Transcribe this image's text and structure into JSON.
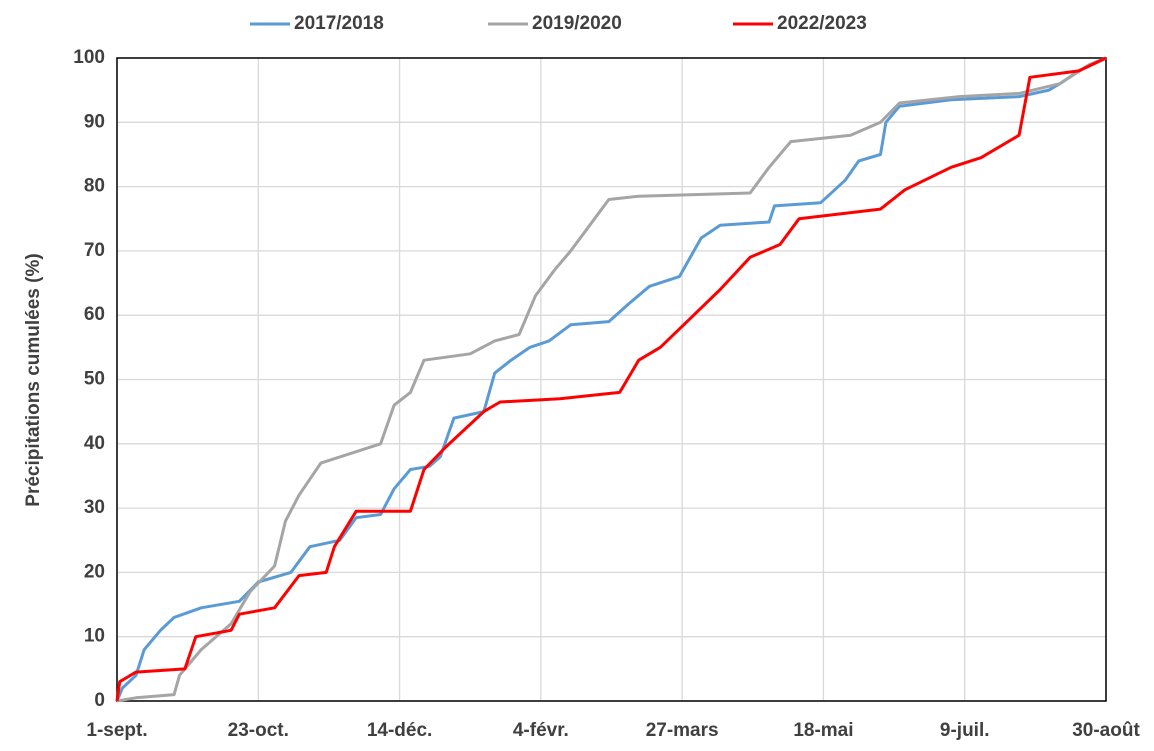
{
  "chart_data": {
    "type": "line",
    "y_label": "Précipitations cumulées (%)",
    "xlim": [
      0,
      364
    ],
    "xticks": [
      {
        "value": 0,
        "label": "1-sept."
      },
      {
        "value": 52,
        "label": "23-oct."
      },
      {
        "value": 104,
        "label": "14-déc."
      },
      {
        "value": 156,
        "label": "4-févr."
      },
      {
        "value": 208,
        "label": "27-mars"
      },
      {
        "value": 260,
        "label": "18-mai"
      },
      {
        "value": 312,
        "label": "9-juil."
      },
      {
        "value": 364,
        "label": "30-août"
      }
    ],
    "ylim": [
      0,
      100
    ],
    "yticks": [
      0,
      10,
      20,
      30,
      40,
      50,
      60,
      70,
      80,
      90,
      100
    ],
    "grid": true,
    "legend": "top",
    "series": [
      {
        "name": "2017/2018",
        "color": "#5b9bd5",
        "x": [
          0,
          2,
          7,
          10,
          16,
          21,
          31,
          45,
          52,
          64,
          71,
          82,
          88,
          97,
          102,
          108,
          115,
          119,
          124,
          135,
          139,
          145,
          152,
          159,
          167,
          181,
          189,
          196,
          207,
          215,
          222,
          240,
          242,
          259,
          268,
          273,
          281,
          283,
          288,
          307,
          332,
          343,
          347,
          354,
          364
        ],
        "values": [
          0,
          2,
          4,
          8,
          11,
          13,
          14.5,
          15.5,
          18.5,
          20,
          24,
          25,
          28.5,
          29,
          33,
          36,
          36.5,
          38,
          44,
          45,
          51,
          53,
          55,
          56,
          58.5,
          59,
          62,
          64.5,
          66,
          72,
          74,
          74.5,
          77,
          77.5,
          81,
          84,
          85,
          90,
          92.5,
          93.5,
          94,
          95,
          96,
          98,
          100
        ]
      },
      {
        "name": "2019/2020",
        "color": "#a5a5a5",
        "x": [
          0,
          7,
          21,
          23,
          31,
          42,
          49,
          58,
          62,
          67,
          75,
          86,
          97,
          102,
          108,
          113,
          130,
          139,
          148,
          154,
          161,
          167,
          174,
          181,
          192,
          233,
          240,
          248,
          270,
          281,
          288,
          310,
          332,
          347,
          358,
          364
        ],
        "values": [
          0,
          0.5,
          1,
          4,
          8,
          12,
          17,
          21,
          28,
          32,
          37,
          38.5,
          40,
          46,
          48,
          53,
          54,
          56,
          57,
          63,
          67,
          70,
          74,
          78,
          78.5,
          79,
          83,
          87,
          88,
          90,
          93,
          94,
          94.5,
          96,
          99,
          100
        ]
      },
      {
        "name": "2022/2023",
        "color": "#ff0000",
        "x": [
          0,
          1,
          7,
          25,
          29,
          42,
          45,
          58,
          67,
          77,
          80,
          88,
          108,
          113,
          121,
          135,
          141,
          163,
          185,
          192,
          200,
          211,
          222,
          233,
          244,
          251,
          281,
          290,
          307,
          318,
          332,
          336,
          354,
          364
        ],
        "values": [
          0,
          3,
          4.5,
          5,
          10,
          11,
          13.5,
          14.5,
          19.5,
          20,
          24,
          29.5,
          29.5,
          36,
          39.5,
          45,
          46.5,
          47,
          48,
          53,
          55,
          59.5,
          64,
          69,
          71,
          75,
          76.5,
          79.5,
          83,
          84.5,
          88,
          97,
          98,
          100
        ]
      }
    ]
  }
}
